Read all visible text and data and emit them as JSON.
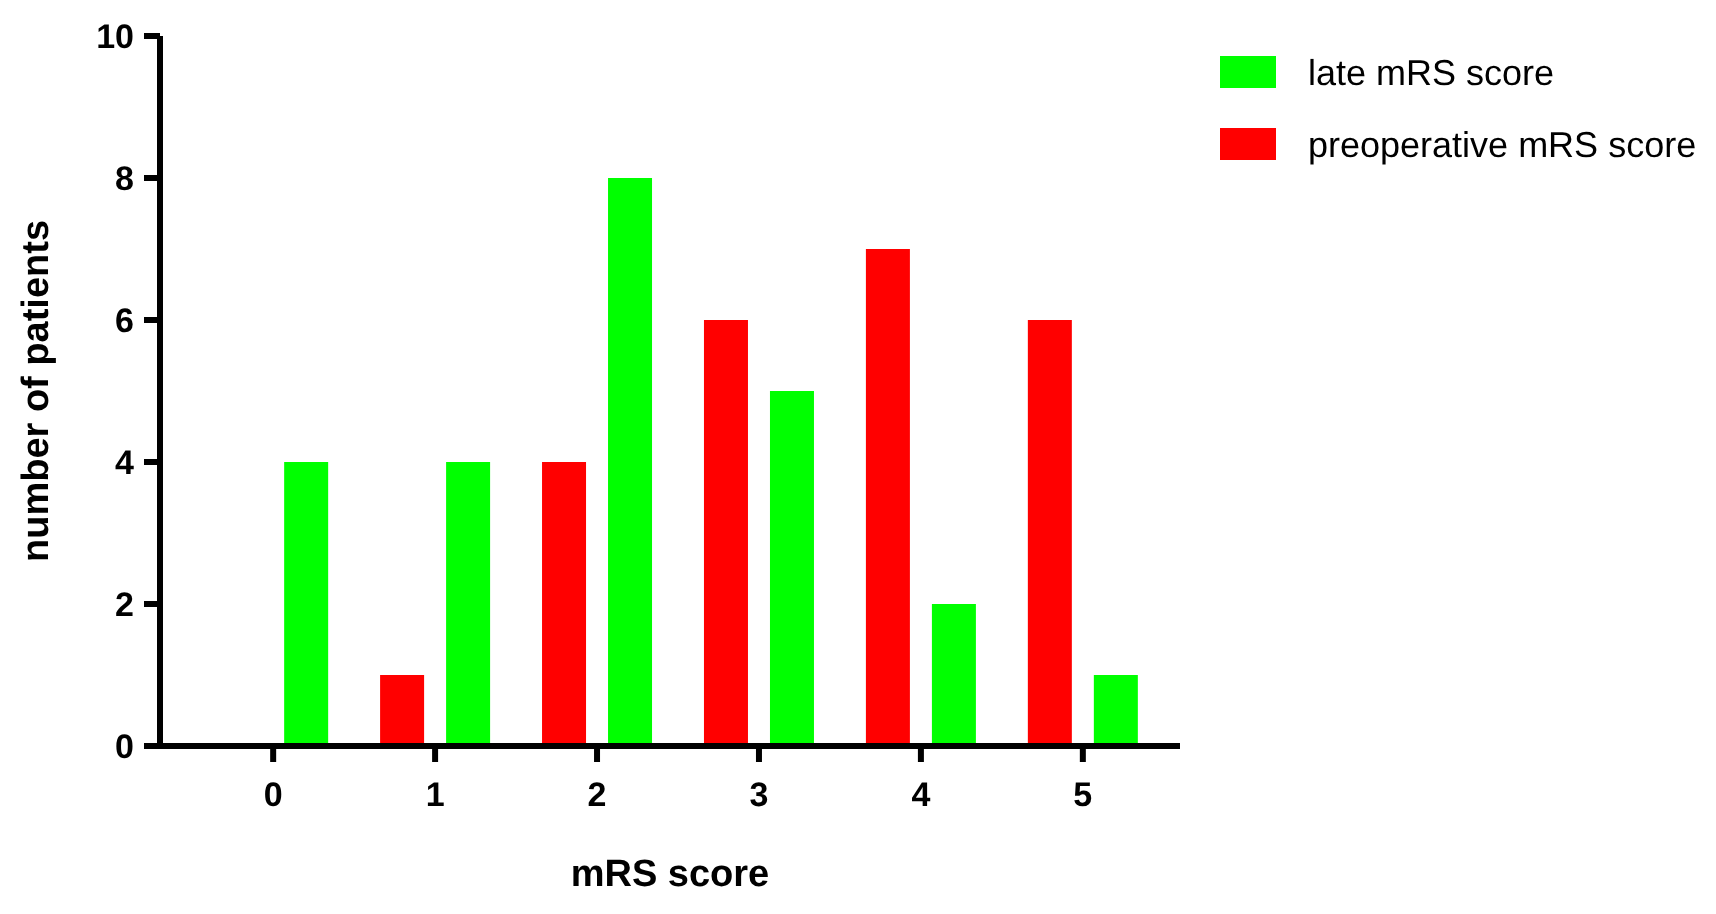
{
  "chart_data": {
    "type": "bar",
    "xlabel": "mRS score",
    "ylabel": "number of patients",
    "categories": [
      "0",
      "1",
      "2",
      "3",
      "4",
      "5"
    ],
    "series": [
      {
        "name": "preoperative mRS score",
        "color": "#ff0000",
        "values": [
          0,
          1,
          4,
          6,
          7,
          6
        ]
      },
      {
        "name": "late mRS score",
        "color": "#00ff00",
        "values": [
          4,
          4,
          8,
          5,
          2,
          1
        ]
      }
    ],
    "ylim": [
      0,
      10
    ],
    "yticks": [
      0,
      2,
      4,
      6,
      8,
      10
    ],
    "grid": false,
    "legend": "top right"
  }
}
